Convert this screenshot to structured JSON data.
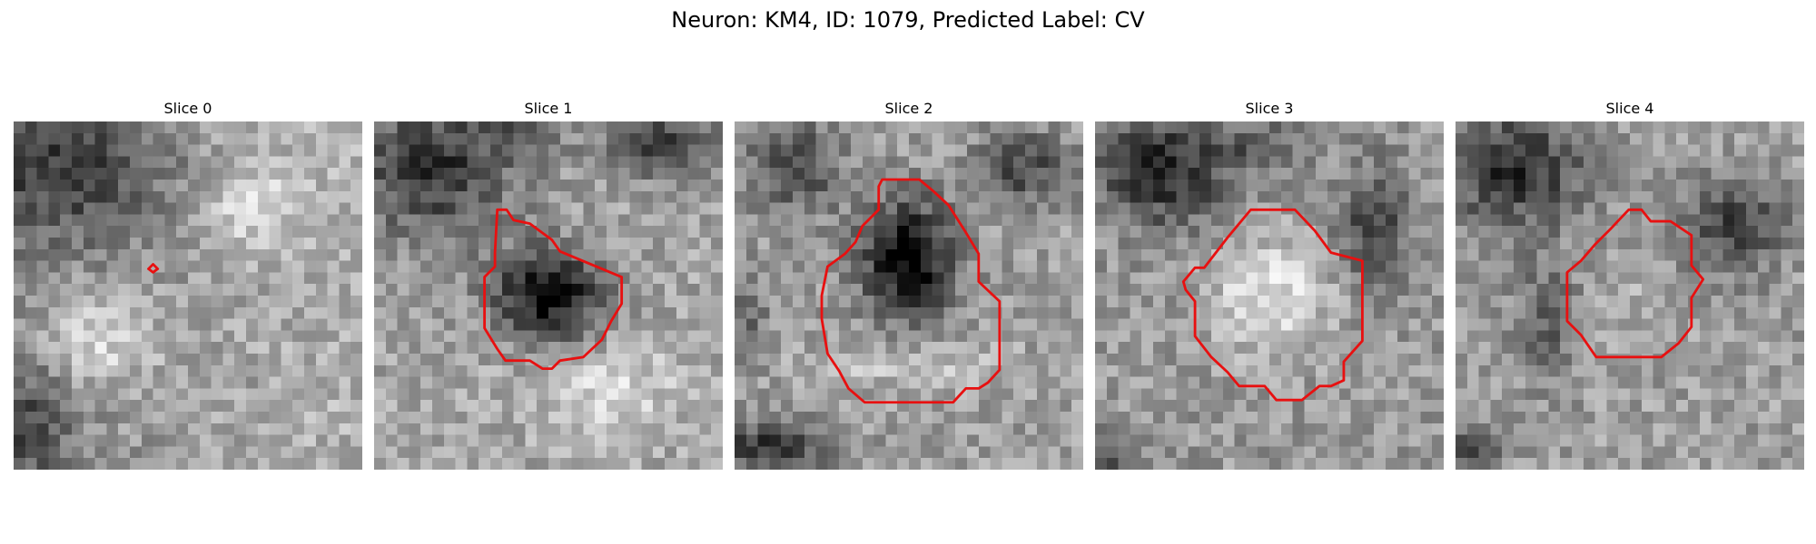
{
  "figure": {
    "title": "Neuron: KM4, ID: 1079, Predicted Label: CV"
  },
  "contour_color": "#e81010",
  "slices": [
    {
      "title": "Slice 0"
    },
    {
      "title": "Slice 1"
    },
    {
      "title": "Slice 2"
    },
    {
      "title": "Slice 3"
    },
    {
      "title": "Slice 4"
    }
  ]
}
